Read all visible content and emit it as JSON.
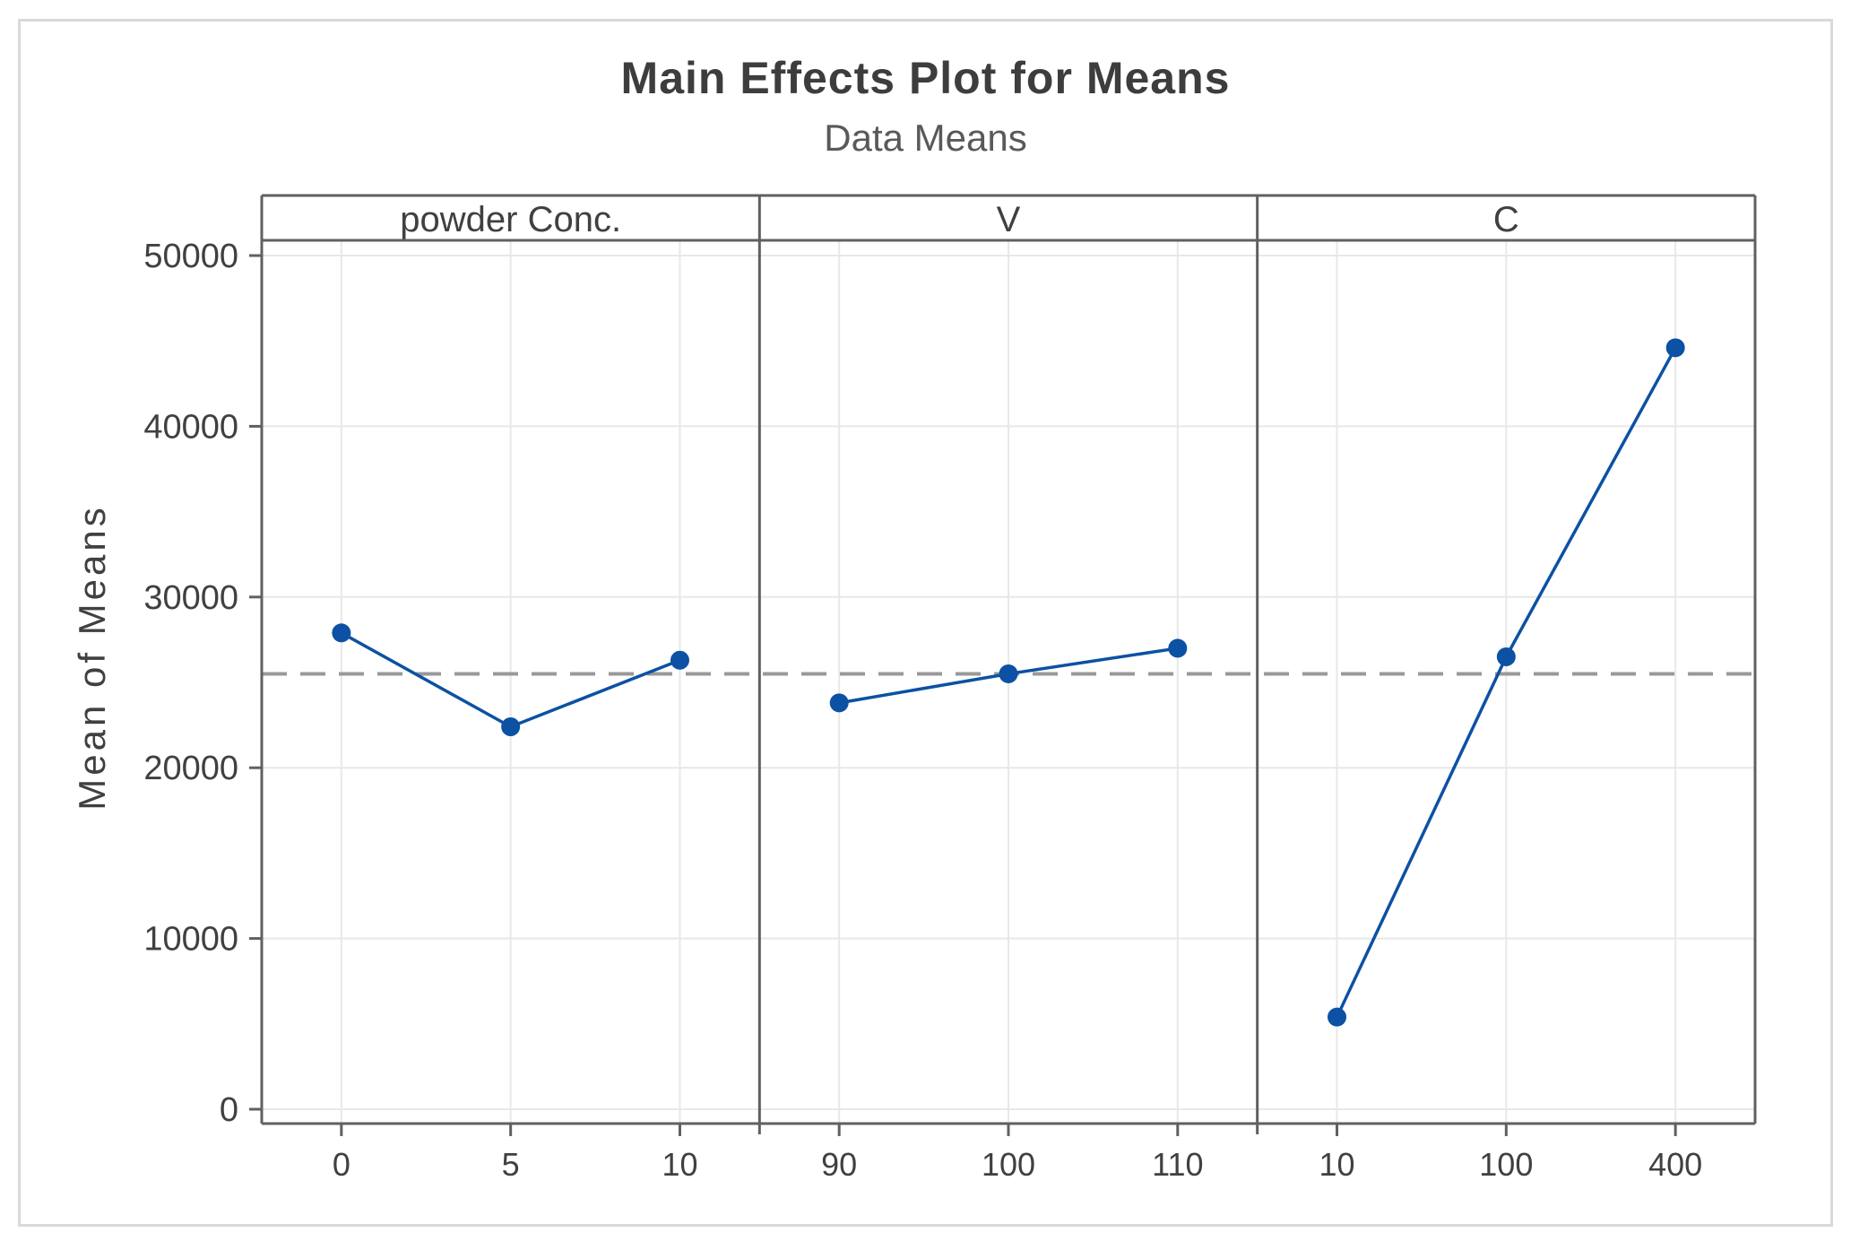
{
  "chart_data": {
    "type": "line",
    "title": "Main Effects Plot for Means",
    "subtitle": "Data Means",
    "ylabel": "Mean of Means",
    "ylim": [
      0,
      50000
    ],
    "yticks": [
      0,
      10000,
      20000,
      30000,
      40000,
      50000
    ],
    "grid": true,
    "legend": "none",
    "grand_mean_reference": 25500,
    "panels": [
      {
        "label": "powder Conc.",
        "categories": [
          "0",
          "5",
          "10"
        ],
        "values": [
          27900,
          22400,
          26300
        ]
      },
      {
        "label": "V",
        "categories": [
          "90",
          "100",
          "110"
        ],
        "values": [
          23800,
          25500,
          27000
        ]
      },
      {
        "label": "C",
        "categories": [
          "10",
          "100",
          "400"
        ],
        "values": [
          5400,
          26500,
          44600
        ]
      }
    ],
    "colors": {
      "series": "#0c51a3",
      "reference_line": "#999999",
      "axis": "#606060",
      "grid": "#e8e8e8",
      "tick_text": "#404040",
      "title": "#3d3d3d",
      "subtitle": "#595959",
      "figure_border": "#d9d9d9"
    }
  }
}
